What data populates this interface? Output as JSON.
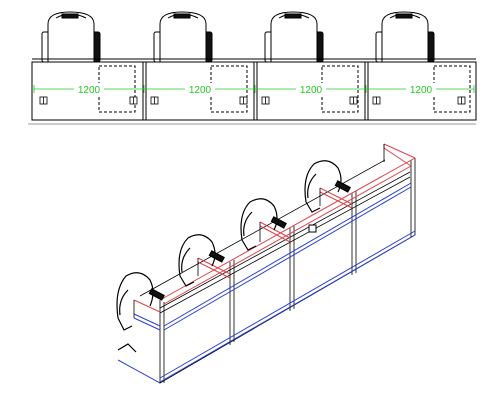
{
  "plan_view": {
    "dimension_labels": [
      "1200",
      "1200",
      "1200",
      "1200"
    ],
    "dimension_color": "#22cc22"
  },
  "isometric_view": {
    "panel_top_color": "#e0434b",
    "panel_base_color": "#2b3fd6",
    "line_color": "#000000"
  }
}
